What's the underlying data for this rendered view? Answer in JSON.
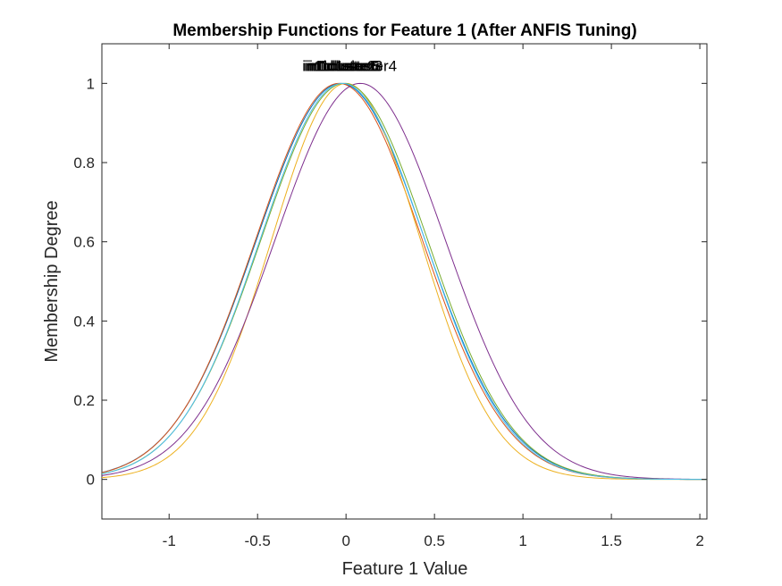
{
  "chart_data": {
    "type": "line",
    "title": "Membership Functions for Feature 1 (After ANFIS Tuning)",
    "xlabel": "Feature 1 Value",
    "ylabel": "Membership Degree",
    "xlim": [
      -1.38,
      2.04
    ],
    "ylim": [
      -0.1,
      1.1
    ],
    "xticks": [
      -1,
      -0.5,
      0,
      0.5,
      1,
      1.5,
      2
    ],
    "xtick_labels": [
      "-1",
      "-0.5",
      "0",
      "0.5",
      "1",
      "1.5",
      "2"
    ],
    "yticks": [
      0,
      0.2,
      0.4,
      0.6,
      0.8,
      1
    ],
    "ytick_labels": [
      "0",
      "0.2",
      "0.4",
      "0.6",
      "0.8",
      "1"
    ],
    "grid": false,
    "series": [
      {
        "name": "in1cluster1",
        "center": -0.03,
        "sigma": 0.475,
        "color": "#0072BD"
      },
      {
        "name": "in1cluster2",
        "center": -0.04,
        "sigma": 0.47,
        "color": "#D95319"
      },
      {
        "name": "in1cluster3",
        "center": 0.0,
        "sigma": 0.42,
        "color": "#EDB120"
      },
      {
        "name": "in1cluster4",
        "center": 0.08,
        "sigma": 0.48,
        "color": "#7E2F8E"
      },
      {
        "name": "in1cluster5",
        "center": -0.01,
        "sigma": 0.47,
        "color": "#77AC30"
      },
      {
        "name": "in1cluster6",
        "center": -0.02,
        "sigma": 0.465,
        "color": "#4DBEEE"
      }
    ]
  }
}
